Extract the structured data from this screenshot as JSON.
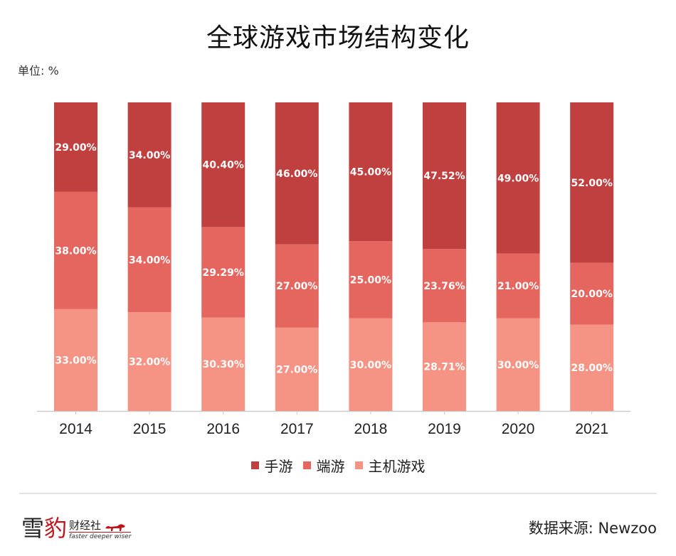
{
  "header": {
    "title": "全球游戏市场结构变化",
    "unit": "单位: %"
  },
  "colors": {
    "mobile": "#c0403f",
    "pc": "#e4665e",
    "console": "#f59484",
    "axis": "#cccccc"
  },
  "chart_data": {
    "type": "bar",
    "stacked": true,
    "title": "全球游戏市场结构变化",
    "xlabel": "",
    "ylabel": "单位: %",
    "ylim": [
      0,
      100
    ],
    "grid": false,
    "legend_position": "bottom",
    "categories": [
      "2014",
      "2015",
      "2016",
      "2017",
      "2018",
      "2019",
      "2020",
      "2021"
    ],
    "series": [
      {
        "name": "主机游戏",
        "values": [
          33.0,
          32.0,
          30.3,
          27.0,
          30.0,
          28.71,
          30.0,
          28.0
        ],
        "labels": [
          "33.00%",
          "32.00%",
          "30.30%",
          "27.00%",
          "30.00%",
          "28.71%",
          "30.00%",
          "28.00%"
        ]
      },
      {
        "name": "端游",
        "values": [
          38.0,
          34.0,
          29.29,
          27.0,
          25.0,
          23.76,
          21.0,
          20.0
        ],
        "labels": [
          "38.00%",
          "34.00%",
          "29.29%",
          "27.00%",
          "25.00%",
          "23.76%",
          "21.00%",
          "20.00%"
        ]
      },
      {
        "name": "手游",
        "values": [
          29.0,
          34.0,
          40.4,
          46.0,
          45.0,
          47.52,
          49.0,
          52.0
        ],
        "labels": [
          "29.00%",
          "34.00%",
          "40.40%",
          "46.00%",
          "45.00%",
          "47.52%",
          "49.00%",
          "52.00%"
        ]
      }
    ]
  },
  "legend": [
    {
      "label": "手游",
      "color_key": "mobile"
    },
    {
      "label": "端游",
      "color_key": "pc"
    },
    {
      "label": "主机游戏",
      "color_key": "console"
    }
  ],
  "footer": {
    "logo_main_1": "雪",
    "logo_main_2": "豹",
    "logo_sub": "财经社",
    "logo_tagline": "faster deeper wiser",
    "source": "数据来源: Newzoo"
  }
}
